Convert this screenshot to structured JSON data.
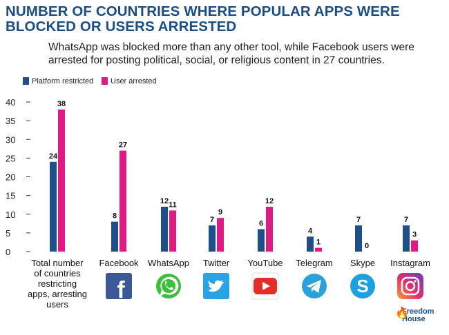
{
  "title": "NUMBER OF COUNTRIES WHERE POPULAR APPS WERE BLOCKED OR USERS ARRESTED",
  "subtitle": "WhatsApp was blocked more than any other tool, while Facebook users were arrested for posting political, social, or religious content in 27 countries.",
  "brand": {
    "line1": "Freedom",
    "line2": "House"
  },
  "colors": {
    "platform": "#1e4f8a",
    "arrested": "#e01a85",
    "title": "#1c4e86"
  },
  "chart_data": {
    "type": "bar",
    "categories": [
      "Total number of countries restricting apps, arresting users",
      "Facebook",
      "WhatsApp",
      "Twitter",
      "YouTube",
      "Telegram",
      "Skype",
      "Instagram"
    ],
    "category_lines": [
      [
        "Total number",
        "of countries",
        "restricting",
        "apps, arresting",
        "users"
      ],
      [
        "Facebook"
      ],
      [
        "WhatsApp"
      ],
      [
        "Twitter"
      ],
      [
        "YouTube"
      ],
      [
        "Telegram"
      ],
      [
        "Skype"
      ],
      [
        "Instagram"
      ]
    ],
    "series": [
      {
        "name": "Platform restricted",
        "values": [
          24,
          8,
          12,
          7,
          6,
          4,
          7,
          7
        ]
      },
      {
        "name": "User arrested",
        "values": [
          38,
          27,
          11,
          9,
          12,
          1,
          0,
          3
        ]
      }
    ],
    "yticks": [
      0,
      5,
      10,
      15,
      20,
      25,
      30,
      35,
      40
    ],
    "ylim": [
      0,
      40
    ],
    "legend_position": "top-left",
    "grid": false,
    "icons": [
      "",
      "facebook-icon",
      "whatsapp-icon",
      "twitter-icon",
      "youtube-icon",
      "telegram-icon",
      "skype-icon",
      "instagram-icon"
    ]
  }
}
